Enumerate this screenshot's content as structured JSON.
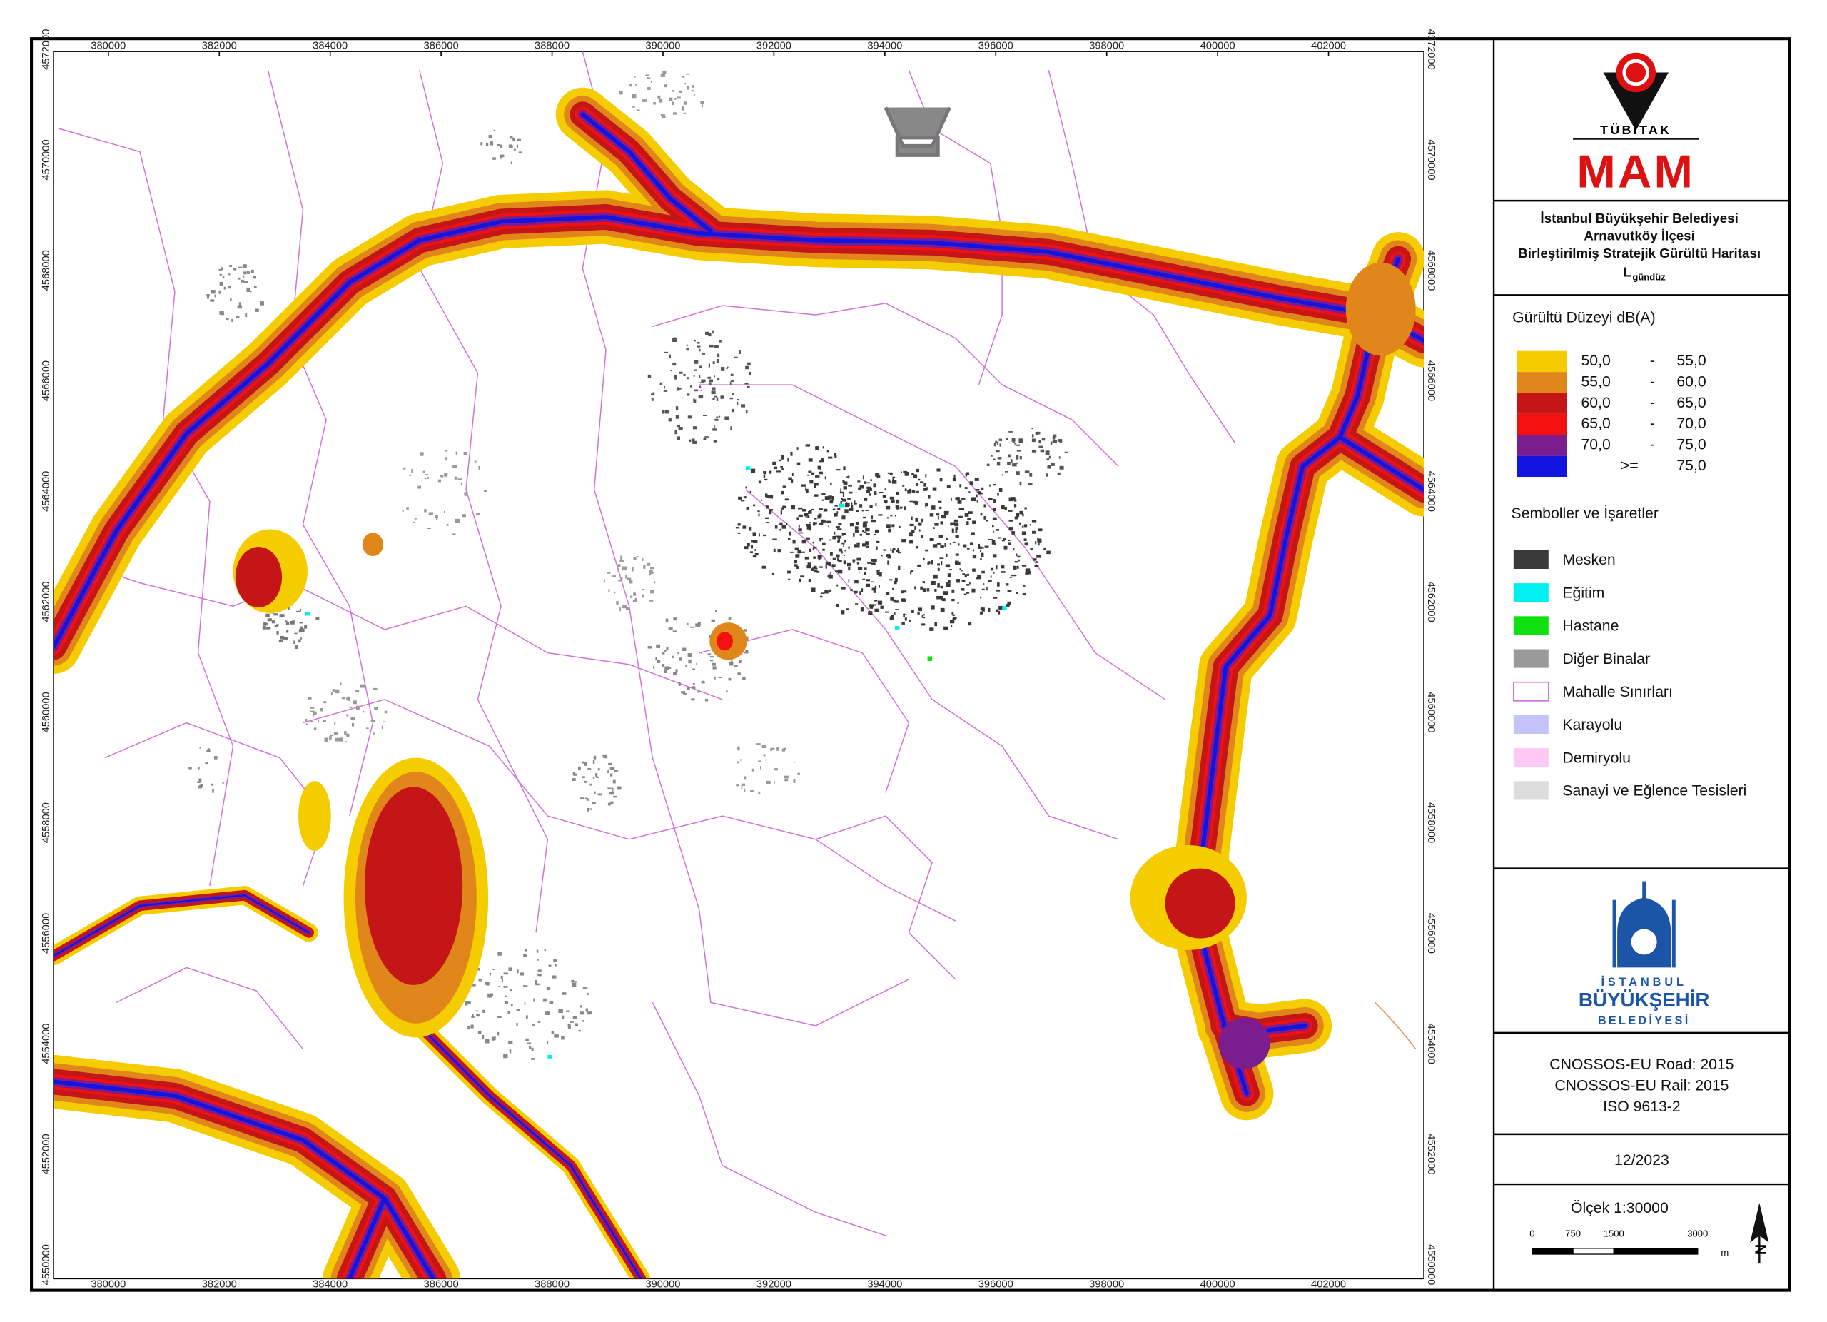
{
  "map": {
    "x_labels": [
      "380000",
      "382000",
      "384000",
      "386000",
      "388000",
      "390000",
      "392000",
      "394000",
      "396000",
      "398000",
      "400000",
      "402000"
    ],
    "y_labels": [
      "4550000",
      "4552000",
      "4554000",
      "4556000",
      "4558000",
      "4560000",
      "4562000",
      "4564000",
      "4566000",
      "4568000",
      "4570000",
      "4572000"
    ]
  },
  "panel": {
    "logo_top": "TÜBİTAK",
    "logo_main": "MAM",
    "title_lines": [
      "İstanbul Büyükşehir Belediyesi",
      "Arnavutköy İlçesi",
      "Birleştirilmiş Stratejik Gürültü Haritası"
    ],
    "indicator": "L",
    "indicator_sub": "gündüz",
    "legend_title": "Gürültü Düzeyi dB(A)",
    "noise_classes": [
      {
        "low": "50,0",
        "dash": "-",
        "high": "55,0",
        "color": "#f5cc00"
      },
      {
        "low": "55,0",
        "dash": "-",
        "high": "60,0",
        "color": "#e0861a"
      },
      {
        "low": "60,0",
        "dash": "-",
        "high": "65,0",
        "color": "#c41616"
      },
      {
        "low": "65,0",
        "dash": "-",
        "high": "70,0",
        "color": "#f51010"
      },
      {
        "low": "70,0",
        "dash": "-",
        "high": "75,0",
        "color": "#7b1d8f"
      },
      {
        "op": ">=",
        "high": "75,0",
        "color": "#1414e0"
      }
    ],
    "symbols_title": "Semboller ve İşaretler",
    "symbols": [
      {
        "label": "Mesken",
        "color": "#3a3a3a"
      },
      {
        "label": "Eğitim",
        "color": "#00f0f0"
      },
      {
        "label": "Hastane",
        "color": "#10e010"
      },
      {
        "label": "Diğer Binalar",
        "color": "#9a9a9a"
      },
      {
        "label": "Mahalle Sınırları",
        "color": "#ffffff",
        "border": "#d070d8"
      },
      {
        "label": "Karayolu",
        "color": "#c4c4fa"
      },
      {
        "label": "Demiryolu",
        "color": "#fcc8f4"
      },
      {
        "label": "Sanayi ve Eğlence Tesisleri",
        "color": "#dcdcdc"
      }
    ],
    "ibb_logo": [
      "İSTANBUL",
      "BÜYÜKŞEHİR",
      "BELEDİYESİ"
    ],
    "standards": [
      "CNOSSOS-EU Road: 2015",
      "CNOSSOS-EU Rail: 2015",
      "ISO 9613-2"
    ],
    "date": "12/2023",
    "scale_title": "Ölçek 1:30000",
    "scale_labels": [
      "0",
      "750",
      "1500",
      "3000"
    ],
    "scale_unit": "m",
    "north": "N"
  }
}
